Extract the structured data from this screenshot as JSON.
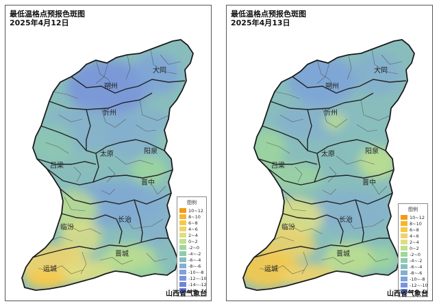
{
  "panels": [
    {
      "title_line1": "最低温格点预报色斑图",
      "title_line2": "2025年4月12日",
      "legend_title": "图例",
      "legend": [
        {
          "label": "10~12",
          "color": "#f29b16"
        },
        {
          "label": "8~10",
          "color": "#f5b62e"
        },
        {
          "label": "6~8",
          "color": "#f6c94a"
        },
        {
          "label": "4~6",
          "color": "#efd36b"
        },
        {
          "label": "2~4",
          "color": "#dfdf82"
        },
        {
          "label": "0~2",
          "color": "#bfe08c"
        },
        {
          "label": "-2~0",
          "color": "#9fd79a"
        },
        {
          "label": "-4~-2",
          "color": "#8ecbae"
        },
        {
          "label": "-6~-4",
          "color": "#88bdbc"
        },
        {
          "label": "-8~-6",
          "color": "#85aed0"
        },
        {
          "label": "-10~-8",
          "color": "#7ea2d9"
        },
        {
          "label": "-12~-10",
          "color": "#7a93dc"
        },
        {
          "label": "-14~-12",
          "color": "#6e86d6"
        },
        {
          "label": "-16~-14",
          "color": "#5f78cf"
        }
      ],
      "cities": [
        "大同",
        "朔州",
        "忻州",
        "阳泉",
        "太原",
        "吕梁",
        "晋中",
        "长治",
        "临汾",
        "晋城",
        "运城"
      ],
      "agency": "山西省气象台"
    },
    {
      "title_line1": "最低温格点预报色斑图",
      "title_line2": "2025年4月13日",
      "legend_title": "图例",
      "legend": [
        {
          "label": "10~12",
          "color": "#f29b16"
        },
        {
          "label": "8~10",
          "color": "#f5b62e"
        },
        {
          "label": "6~8",
          "color": "#f6c94a"
        },
        {
          "label": "4~6",
          "color": "#efd36b"
        },
        {
          "label": "2~4",
          "color": "#dfdf82"
        },
        {
          "label": "0~2",
          "color": "#bfe08c"
        },
        {
          "label": "-2~0",
          "color": "#9fd79a"
        },
        {
          "label": "-4~-2",
          "color": "#8ecbae"
        },
        {
          "label": "-6~-4",
          "color": "#88bdbc"
        },
        {
          "label": "-8~-6",
          "color": "#85aed0"
        },
        {
          "label": "-10~-8",
          "color": "#7ea2d9"
        },
        {
          "label": "-12~-10",
          "color": "#7a93dc"
        },
        {
          "label": "-14~-12",
          "color": "#6e86d6"
        }
      ],
      "cities": [
        "大同",
        "朔州",
        "忻州",
        "阳泉",
        "太原",
        "吕梁",
        "晋中",
        "长治",
        "临汾",
        "晋城",
        "运城"
      ],
      "agency": "山西省气象台"
    }
  ]
}
